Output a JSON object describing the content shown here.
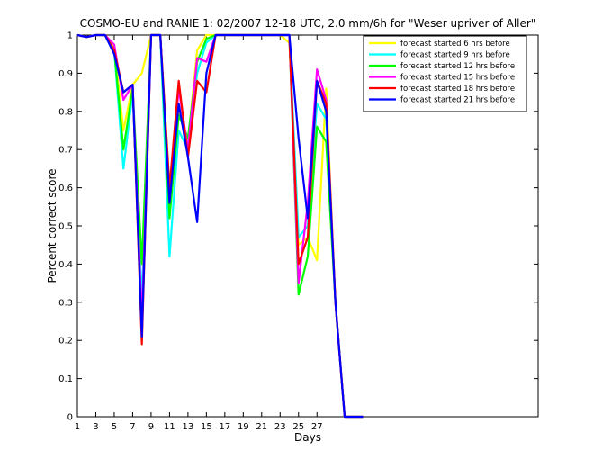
{
  "chart_data": {
    "type": "line",
    "title": "COSMO-EU and RANIE 1: 02/2007 12-18 UTC, 2.0 mm/6h for \"Weser upriver of Aller\"",
    "xlabel": "Days",
    "ylabel": "Percent correct score",
    "xlim": [
      1,
      51
    ],
    "ylim": [
      0,
      1
    ],
    "xticks": [
      1,
      3,
      5,
      7,
      9,
      11,
      13,
      15,
      17,
      19,
      21,
      23,
      25,
      27
    ],
    "yticks": [
      0,
      0.1,
      0.2,
      0.3,
      0.4,
      0.5,
      0.6,
      0.7,
      0.8,
      0.9,
      1
    ],
    "ytick_labels": [
      "0",
      "0.1",
      "0.2",
      "0.3",
      "0.4",
      "0.5",
      "0.6",
      "0.7",
      "0.8",
      "0.9",
      "1"
    ],
    "grid": false,
    "legend_position": "top-right",
    "x": [
      1,
      2,
      3,
      4,
      5,
      6,
      7,
      8,
      9,
      10,
      11,
      12,
      13,
      14,
      15,
      16,
      17,
      18,
      19,
      20,
      21,
      22,
      23,
      24,
      25,
      26,
      27,
      28,
      29,
      30,
      31,
      32
    ],
    "series": [
      {
        "name": "forecast started 6 hrs before",
        "color": "#ffff00",
        "values": [
          1,
          0.995,
          1,
          1,
          0.97,
          0.75,
          0.87,
          0.9,
          1,
          1,
          0.6,
          0.8,
          0.72,
          0.96,
          1,
          1,
          1,
          1,
          1,
          1,
          1,
          1,
          1,
          0.98,
          0.45,
          0.47,
          0.41,
          0.86,
          0.3,
          0,
          0,
          0
        ]
      },
      {
        "name": "forecast started 9 hrs before",
        "color": "#00ffff",
        "values": [
          1,
          0.995,
          1,
          1,
          0.96,
          0.65,
          0.85,
          0.3,
          1,
          1,
          0.42,
          0.75,
          0.7,
          0.9,
          0.98,
          1,
          1,
          1,
          1,
          1,
          1,
          1,
          1,
          1,
          0.47,
          0.5,
          0.82,
          0.78,
          0.3,
          0,
          0,
          0
        ]
      },
      {
        "name": "forecast started 12 hrs before",
        "color": "#00ff00",
        "values": [
          1,
          0.995,
          1,
          1,
          0.96,
          0.7,
          0.86,
          0.4,
          1,
          1,
          0.52,
          0.79,
          0.73,
          0.93,
          0.99,
          1,
          1,
          1,
          1,
          1,
          1,
          1,
          1,
          1,
          0.32,
          0.42,
          0.76,
          0.72,
          0.3,
          0,
          0,
          0
        ]
      },
      {
        "name": "forecast started 15 hrs before",
        "color": "#ff00ff",
        "values": [
          1,
          0.995,
          1,
          1,
          0.975,
          0.83,
          0.87,
          0.25,
          1,
          1,
          0.58,
          0.86,
          0.7,
          0.94,
          0.93,
          1,
          1,
          1,
          1,
          1,
          1,
          1,
          1,
          1,
          0.35,
          0.56,
          0.91,
          0.83,
          0.3,
          0,
          0,
          0
        ]
      },
      {
        "name": "forecast started 18 hrs before",
        "color": "#ff0000",
        "values": [
          1,
          0.995,
          1,
          1,
          0.96,
          0.85,
          0.87,
          0.19,
          1,
          1,
          0.6,
          0.88,
          0.68,
          0.88,
          0.85,
          1,
          1,
          1,
          1,
          1,
          1,
          1,
          1,
          1,
          0.4,
          0.47,
          0.88,
          0.82,
          0.3,
          0,
          0,
          0
        ]
      },
      {
        "name": "forecast started 21 hrs before",
        "color": "#0000ff",
        "values": [
          1,
          0.995,
          1,
          1,
          0.95,
          0.85,
          0.87,
          0.21,
          1,
          1,
          0.56,
          0.82,
          0.68,
          0.51,
          0.9,
          1,
          1,
          1,
          1,
          1,
          1,
          1,
          1,
          1,
          0.73,
          0.52,
          0.88,
          0.8,
          0.3,
          0,
          0,
          0
        ]
      }
    ]
  }
}
